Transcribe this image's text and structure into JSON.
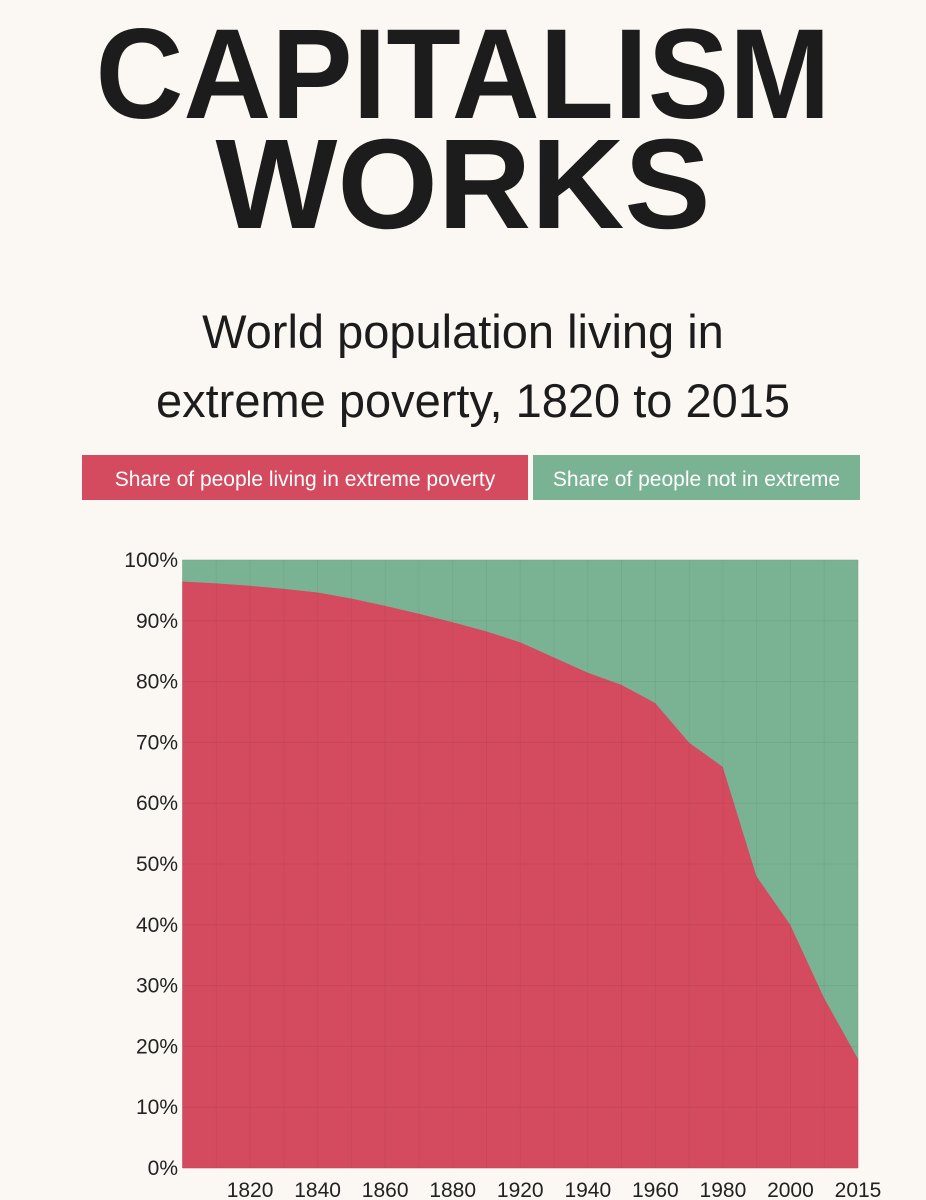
{
  "chart_data": {
    "type": "stacked_area",
    "title": [
      "CAPITALISM",
      "WORKS"
    ],
    "subtitle": [
      "World population living in",
      "extreme poverty, 1820 to 2015"
    ],
    "categories": [
      null,
      null,
      "1820",
      null,
      "1840",
      null,
      "1860",
      null,
      "1880",
      null,
      "1920",
      null,
      "1940",
      null,
      "1960",
      null,
      "1980",
      null,
      "2000",
      null,
      "2015"
    ],
    "series": [
      {
        "name": "Share of people living in extreme poverty",
        "color": "#d44b5f",
        "values": [
          96.5,
          96.2,
          95.8,
          95.3,
          94.7,
          93.7,
          92.5,
          91.2,
          89.8,
          88.3,
          86.5,
          84,
          81.5,
          79.5,
          76.5,
          70,
          66,
          48,
          40,
          28,
          18
        ]
      },
      {
        "name": "Share of people not in extreme",
        "color": "#7ab393",
        "values": [
          3.5,
          3.8,
          4.2,
          4.7,
          5.3,
          6.3,
          7.5,
          8.8,
          10.2,
          11.7,
          13.5,
          16,
          18.5,
          20.5,
          23.5,
          30,
          34,
          52,
          60,
          72,
          82
        ]
      }
    ],
    "ylim": [
      0,
      100
    ],
    "yticks": [
      {
        "value": 0,
        "label": "0%"
      },
      {
        "value": 10,
        "label": "10%"
      },
      {
        "value": 20,
        "label": "20%"
      },
      {
        "value": 30,
        "label": "30%"
      },
      {
        "value": 40,
        "label": "40%"
      },
      {
        "value": 50,
        "label": "50%"
      },
      {
        "value": 60,
        "label": "60%"
      },
      {
        "value": 70,
        "label": "70%"
      },
      {
        "value": 80,
        "label": "80%"
      },
      {
        "value": 90,
        "label": "90%"
      },
      {
        "value": 100,
        "label": "100%"
      }
    ],
    "grid": true
  }
}
